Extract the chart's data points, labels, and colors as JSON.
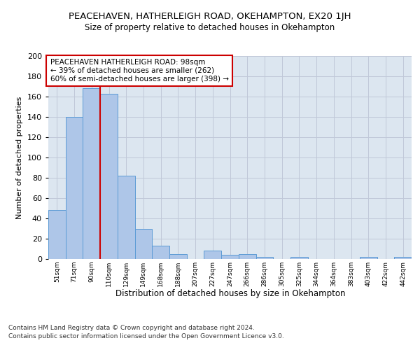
{
  "title1": "PEACEHAVEN, HATHERLEIGH ROAD, OKEHAMPTON, EX20 1JH",
  "title2": "Size of property relative to detached houses in Okehampton",
  "xlabel": "Distribution of detached houses by size in Okehampton",
  "ylabel": "Number of detached properties",
  "footer1": "Contains HM Land Registry data © Crown copyright and database right 2024.",
  "footer2": "Contains public sector information licensed under the Open Government Licence v3.0.",
  "bin_labels": [
    "51sqm",
    "71sqm",
    "90sqm",
    "110sqm",
    "129sqm",
    "149sqm",
    "168sqm",
    "188sqm",
    "207sqm",
    "227sqm",
    "247sqm",
    "266sqm",
    "286sqm",
    "305sqm",
    "325sqm",
    "344sqm",
    "364sqm",
    "383sqm",
    "403sqm",
    "422sqm",
    "442sqm"
  ],
  "bar_values": [
    48,
    140,
    168,
    163,
    82,
    30,
    13,
    5,
    0,
    8,
    4,
    5,
    2,
    0,
    2,
    0,
    0,
    0,
    2,
    0,
    2
  ],
  "bar_color": "#aec6e8",
  "bar_edge_color": "#5b9bd5",
  "red_line_x": 2.5,
  "annotation_text": "PEACEHAVEN HATHERLEIGH ROAD: 98sqm\n← 39% of detached houses are smaller (262)\n60% of semi-detached houses are larger (398) →",
  "annotation_box_color": "#ffffff",
  "annotation_box_edge": "#cc0000",
  "ylim": [
    0,
    200
  ],
  "yticks": [
    0,
    20,
    40,
    60,
    80,
    100,
    120,
    140,
    160,
    180,
    200
  ],
  "grid_color": "#c0c8d8",
  "background_color": "#dce6f0",
  "fig_bg_color": "#ffffff",
  "title1_fontsize": 9.5,
  "title2_fontsize": 8.5,
  "xlabel_fontsize": 8.5,
  "ylabel_fontsize": 8,
  "footer_fontsize": 6.5,
  "annotation_fontsize": 7.5
}
